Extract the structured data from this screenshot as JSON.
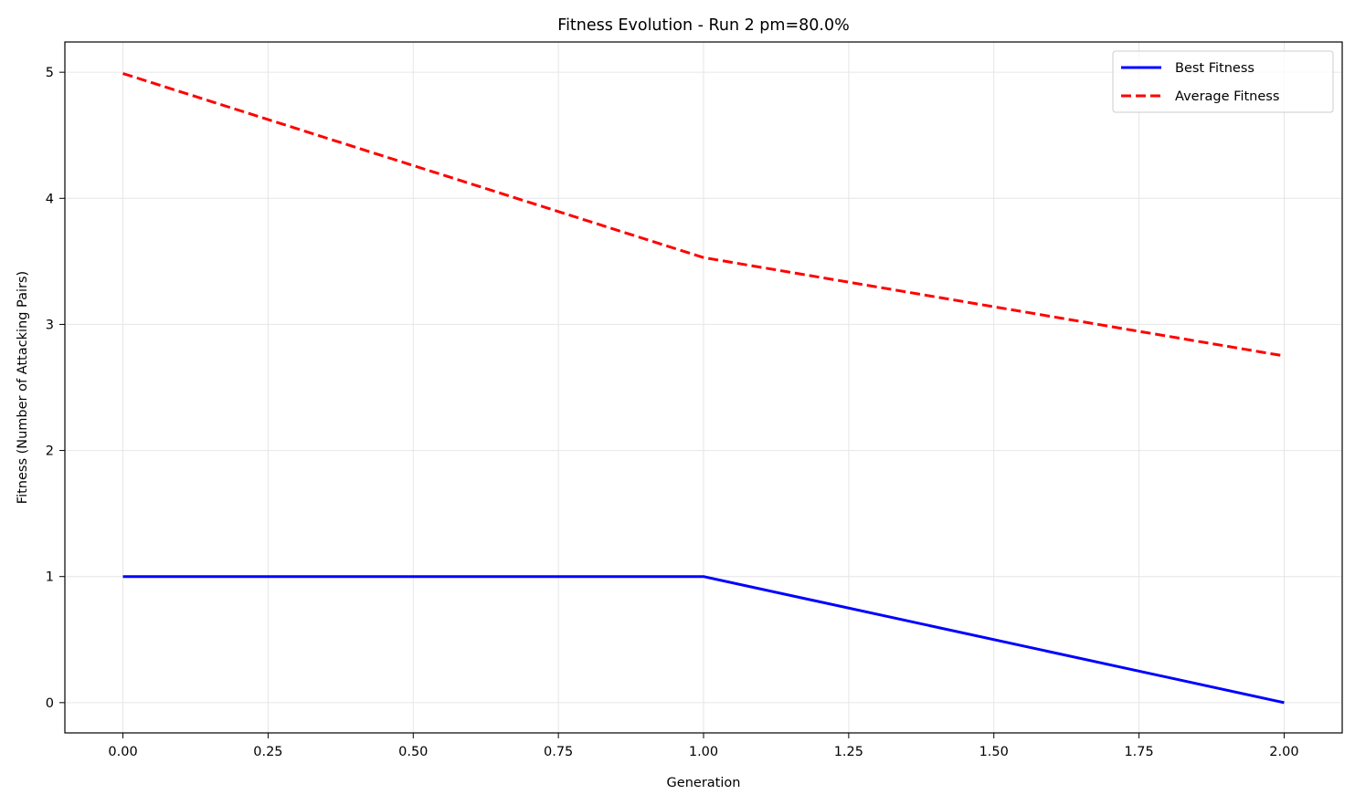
{
  "chart_data": {
    "type": "line",
    "title": "Fitness Evolution - Run 2 pm=80.0%",
    "xlabel": "Generation",
    "ylabel": "Fitness (Number of Attacking Pairs)",
    "xlim": [
      -0.1,
      2.1
    ],
    "ylim": [
      -0.24,
      5.24
    ],
    "xticks": [
      0.0,
      0.25,
      0.5,
      0.75,
      1.0,
      1.25,
      1.5,
      1.75,
      2.0
    ],
    "xtick_labels": [
      "0.00",
      "0.25",
      "0.50",
      "0.75",
      "1.00",
      "1.25",
      "1.50",
      "1.75",
      "2.00"
    ],
    "yticks": [
      0,
      1,
      2,
      3,
      4,
      5
    ],
    "ytick_labels": [
      "0",
      "1",
      "2",
      "3",
      "4",
      "5"
    ],
    "grid": true,
    "legend_position": "top-right",
    "x": [
      0,
      1,
      2
    ],
    "series": [
      {
        "name": "Best Fitness",
        "values": [
          1,
          1,
          0
        ],
        "color": "#0000ff",
        "style": "solid"
      },
      {
        "name": "Average Fitness",
        "values": [
          4.99,
          3.53,
          2.75
        ],
        "color": "#ff0000",
        "style": "dashed"
      }
    ]
  }
}
